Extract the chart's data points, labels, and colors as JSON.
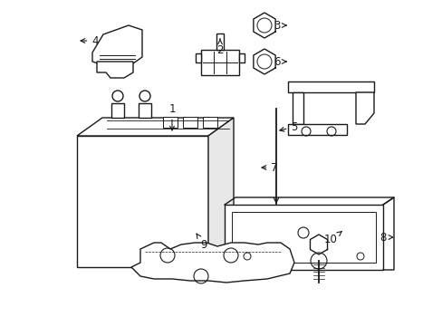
{
  "background_color": "#ffffff",
  "line_color": "#1a1a1a",
  "line_width": 1.0,
  "label_fontsize": 8.5,
  "fig_w": 4.89,
  "fig_h": 3.6,
  "dpi": 100
}
